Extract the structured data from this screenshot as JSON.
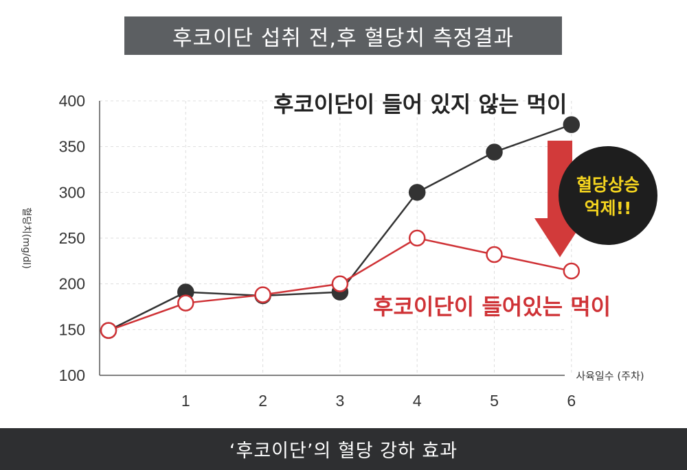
{
  "title": "후코이단 섭취 전,후 혈당치 측정결과",
  "footer": "‘후코이단’의 혈당 강하 효과",
  "badge": {
    "line1": "혈당상승",
    "line2": "억제!!"
  },
  "colors": {
    "series_without": "#333333",
    "series_with": "#cf3236",
    "arrow": "#d23a3a",
    "badge_bg": "#1e1e1e",
    "badge_text": "#f5d51f"
  },
  "chart_data": {
    "type": "line",
    "x": [
      0,
      1,
      2,
      3,
      4,
      5,
      6
    ],
    "x_tick_labels": [
      "1",
      "2",
      "3",
      "4",
      "5",
      "6"
    ],
    "y_tick_labels": [
      "100",
      "150",
      "200",
      "250",
      "300",
      "350",
      "400"
    ],
    "ylim": [
      100,
      400
    ],
    "xlabel": "사육일수 (주차)",
    "ylabel": "혈당치(mg/dl)",
    "grid": true,
    "series": [
      {
        "name": "후코이단이 들어 있지 않는 먹이",
        "values": [
          149,
          191,
          187,
          191,
          300,
          344,
          374
        ]
      },
      {
        "name": "후코이단이 들어있는 먹이",
        "values": [
          149,
          179,
          188,
          200,
          250,
          232,
          214
        ]
      }
    ]
  }
}
